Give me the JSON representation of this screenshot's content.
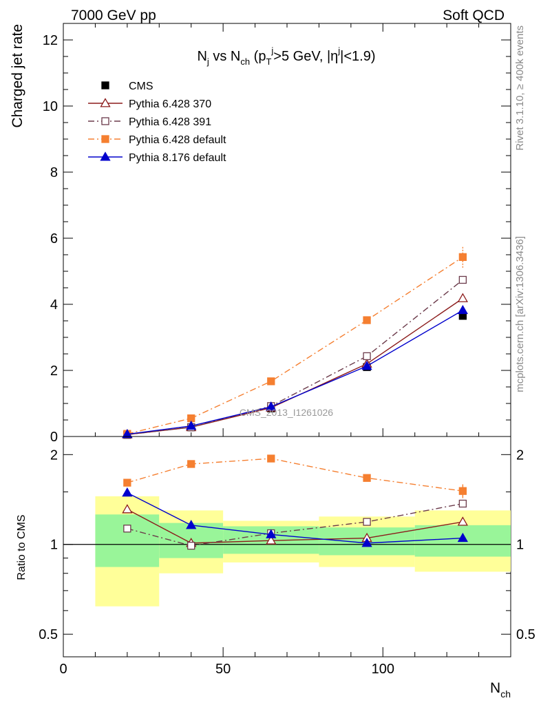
{
  "header": {
    "left": "7000 GeV pp",
    "right": "Soft QCD"
  },
  "side_labels": {
    "top": "Rivet 3.1.10, ≥ 400k events",
    "bottom": "mcplots.cern.ch [arXiv:1306.3436]"
  },
  "watermark": "CMS_2013_I1261026",
  "chart_data": [
    {
      "type": "line",
      "title": "N_j vs N_ch (p_T^j>5 GeV, |η^j|<1.9)",
      "ylabel": "Charged jet rate",
      "xlim": [
        0,
        140
      ],
      "ylim": [
        0,
        12.5
      ],
      "yticks": [
        0,
        2,
        4,
        6,
        8,
        10,
        12
      ],
      "legend_position": "top-left",
      "x": [
        20,
        40,
        65,
        95,
        125
      ],
      "series": [
        {
          "name": "CMS",
          "color": "#000000",
          "marker": "filled-square",
          "style": "none",
          "values": [
            0.05,
            0.28,
            0.85,
            2.1,
            3.65
          ]
        },
        {
          "name": "Pythia 6.428 370",
          "color": "#8b1a1a",
          "marker": "open-triangle",
          "style": "solid",
          "values": [
            0.06,
            0.28,
            0.87,
            2.2,
            4.18
          ]
        },
        {
          "name": "Pythia 6.428 391",
          "color": "#6b3a4a",
          "marker": "open-square",
          "style": "dashdot",
          "values": [
            0.055,
            0.28,
            0.92,
            2.43,
            4.74
          ]
        },
        {
          "name": "Pythia 6.428 default",
          "color": "#f57f30",
          "marker": "filled-square",
          "style": "dashdot",
          "values": [
            0.08,
            0.55,
            1.67,
            3.52,
            5.43
          ],
          "errors": [
            0,
            0,
            0,
            0,
            0.32
          ]
        },
        {
          "name": "Pythia 8.176 default",
          "color": "#0000cc",
          "marker": "filled-triangle",
          "style": "solid",
          "values": [
            0.07,
            0.32,
            0.9,
            2.13,
            3.82
          ]
        }
      ]
    },
    {
      "type": "line",
      "xlabel": "N_ch",
      "ylabel": "Ratio to CMS",
      "xlim": [
        0,
        140
      ],
      "ylim": [
        0.42,
        2.3
      ],
      "scale": "log",
      "yticks": [
        0.5,
        1,
        2
      ],
      "xticks": [
        0,
        50,
        100
      ],
      "bands": [
        {
          "x": [
            10,
            30
          ],
          "inner": [
            0.84,
            1.26
          ],
          "outer": [
            0.62,
            1.45
          ]
        },
        {
          "x": [
            30,
            50
          ],
          "inner": [
            0.9,
            1.18
          ],
          "outer": [
            0.8,
            1.3
          ]
        },
        {
          "x": [
            50,
            80
          ],
          "inner": [
            0.93,
            1.15
          ],
          "outer": [
            0.87,
            1.2
          ]
        },
        {
          "x": [
            80,
            110
          ],
          "inner": [
            0.92,
            1.14
          ],
          "outer": [
            0.84,
            1.24
          ]
        },
        {
          "x": [
            110,
            140
          ],
          "inner": [
            0.91,
            1.16
          ],
          "outer": [
            0.81,
            1.3
          ]
        }
      ],
      "x": [
        20,
        40,
        65,
        95,
        125
      ],
      "series": [
        {
          "name": "Pythia 6.428 370",
          "color": "#8b1a1a",
          "marker": "open-triangle",
          "style": "solid",
          "values": [
            1.31,
            1.01,
            1.03,
            1.05,
            1.19
          ]
        },
        {
          "name": "Pythia 6.428 391",
          "color": "#6b3a4a",
          "marker": "open-square",
          "style": "dashdot",
          "values": [
            1.13,
            0.99,
            1.09,
            1.19,
            1.37
          ]
        },
        {
          "name": "Pythia 6.428 default",
          "color": "#f57f30",
          "marker": "filled-square",
          "style": "dashdot",
          "values": [
            1.61,
            1.86,
            1.94,
            1.67,
            1.51
          ],
          "errors": [
            0,
            0,
            0,
            0,
            0.08
          ]
        },
        {
          "name": "Pythia 8.176 default",
          "color": "#0000cc",
          "marker": "filled-triangle",
          "style": "solid",
          "values": [
            1.49,
            1.16,
            1.08,
            1.01,
            1.05
          ]
        }
      ]
    }
  ]
}
